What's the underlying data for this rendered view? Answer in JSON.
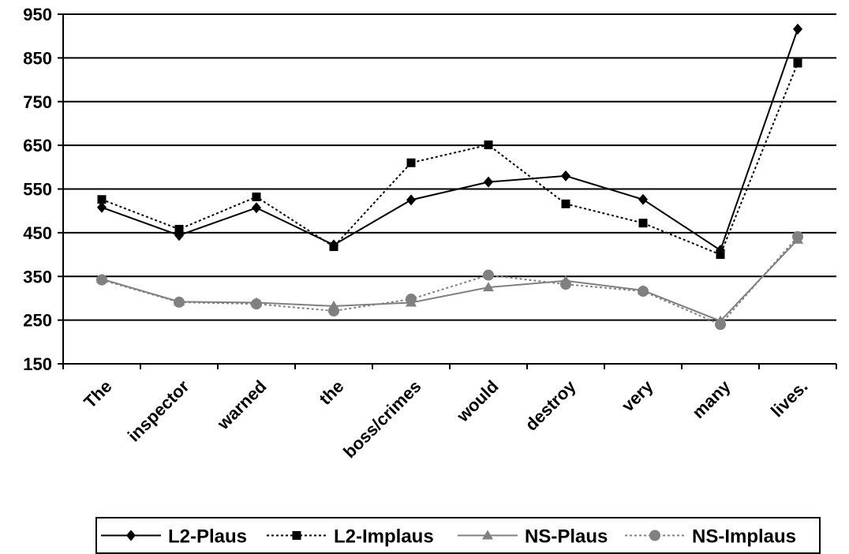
{
  "chart_data": {
    "type": "line",
    "categories": [
      "The",
      "inspector",
      "warned",
      "the",
      "boss/crimes",
      "would",
      "destroy",
      "very",
      "many",
      "lives."
    ],
    "ylim": [
      150,
      950
    ],
    "yticks": [
      150,
      250,
      350,
      450,
      550,
      650,
      750,
      850,
      950
    ],
    "grid": true,
    "legend_position": "bottom",
    "series": [
      {
        "name": "L2-Plaus",
        "marker": "diamond",
        "line": "solid",
        "color": "#000000",
        "values": [
          508,
          444,
          507,
          422,
          525,
          566,
          580,
          526,
          410,
          916
        ]
      },
      {
        "name": "L2-Implaus",
        "marker": "square",
        "line": "dotted",
        "color": "#000000",
        "values": [
          526,
          458,
          532,
          418,
          610,
          651,
          516,
          472,
          400,
          838
        ]
      },
      {
        "name": "NS-Plaus",
        "marker": "triangle",
        "line": "solid",
        "color": "#808080",
        "values": [
          344,
          292,
          290,
          282,
          290,
          325,
          340,
          318,
          248,
          434
        ]
      },
      {
        "name": "NS-Implaus",
        "marker": "circle",
        "line": "dotted",
        "color": "#808080",
        "values": [
          342,
          291,
          287,
          271,
          298,
          353,
          332,
          316,
          240,
          441
        ]
      }
    ]
  }
}
